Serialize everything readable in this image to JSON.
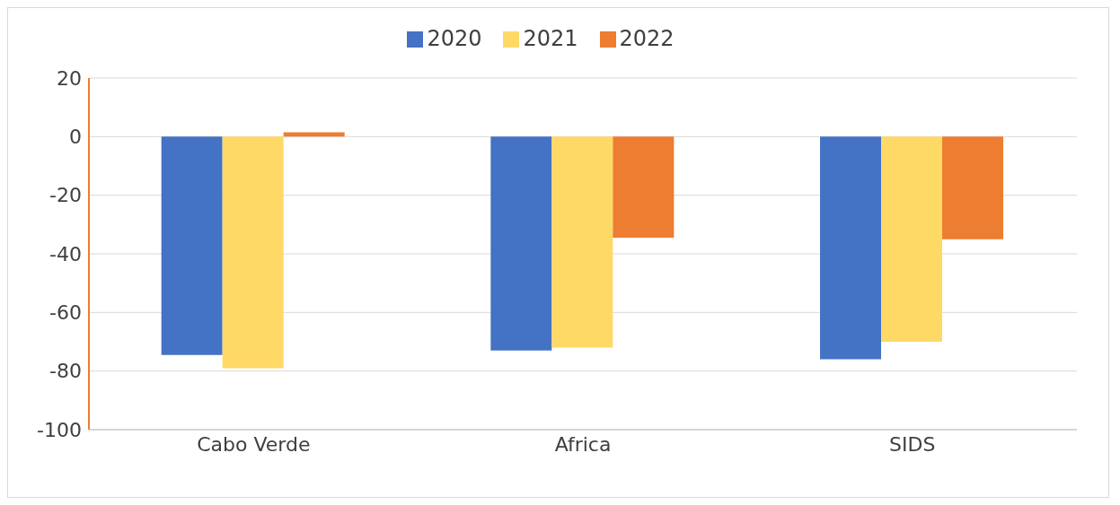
{
  "chart_data": {
    "type": "bar",
    "categories": [
      "Cabo Verde",
      "Africa",
      "SIDS"
    ],
    "series": [
      {
        "name": "2020",
        "color": "#4472c4",
        "values": [
          -74.5,
          -73,
          -76
        ]
      },
      {
        "name": "2021",
        "color": "#ffd966",
        "values": [
          -79,
          -72,
          -70
        ]
      },
      {
        "name": "2022",
        "color": "#ed7d31",
        "values": [
          1.5,
          -34.5,
          -35
        ]
      }
    ],
    "ylim": [
      -100,
      20
    ],
    "yticks": [
      -100,
      -80,
      -60,
      -40,
      -20,
      0,
      20
    ],
    "grid": "y",
    "legend": "top"
  }
}
